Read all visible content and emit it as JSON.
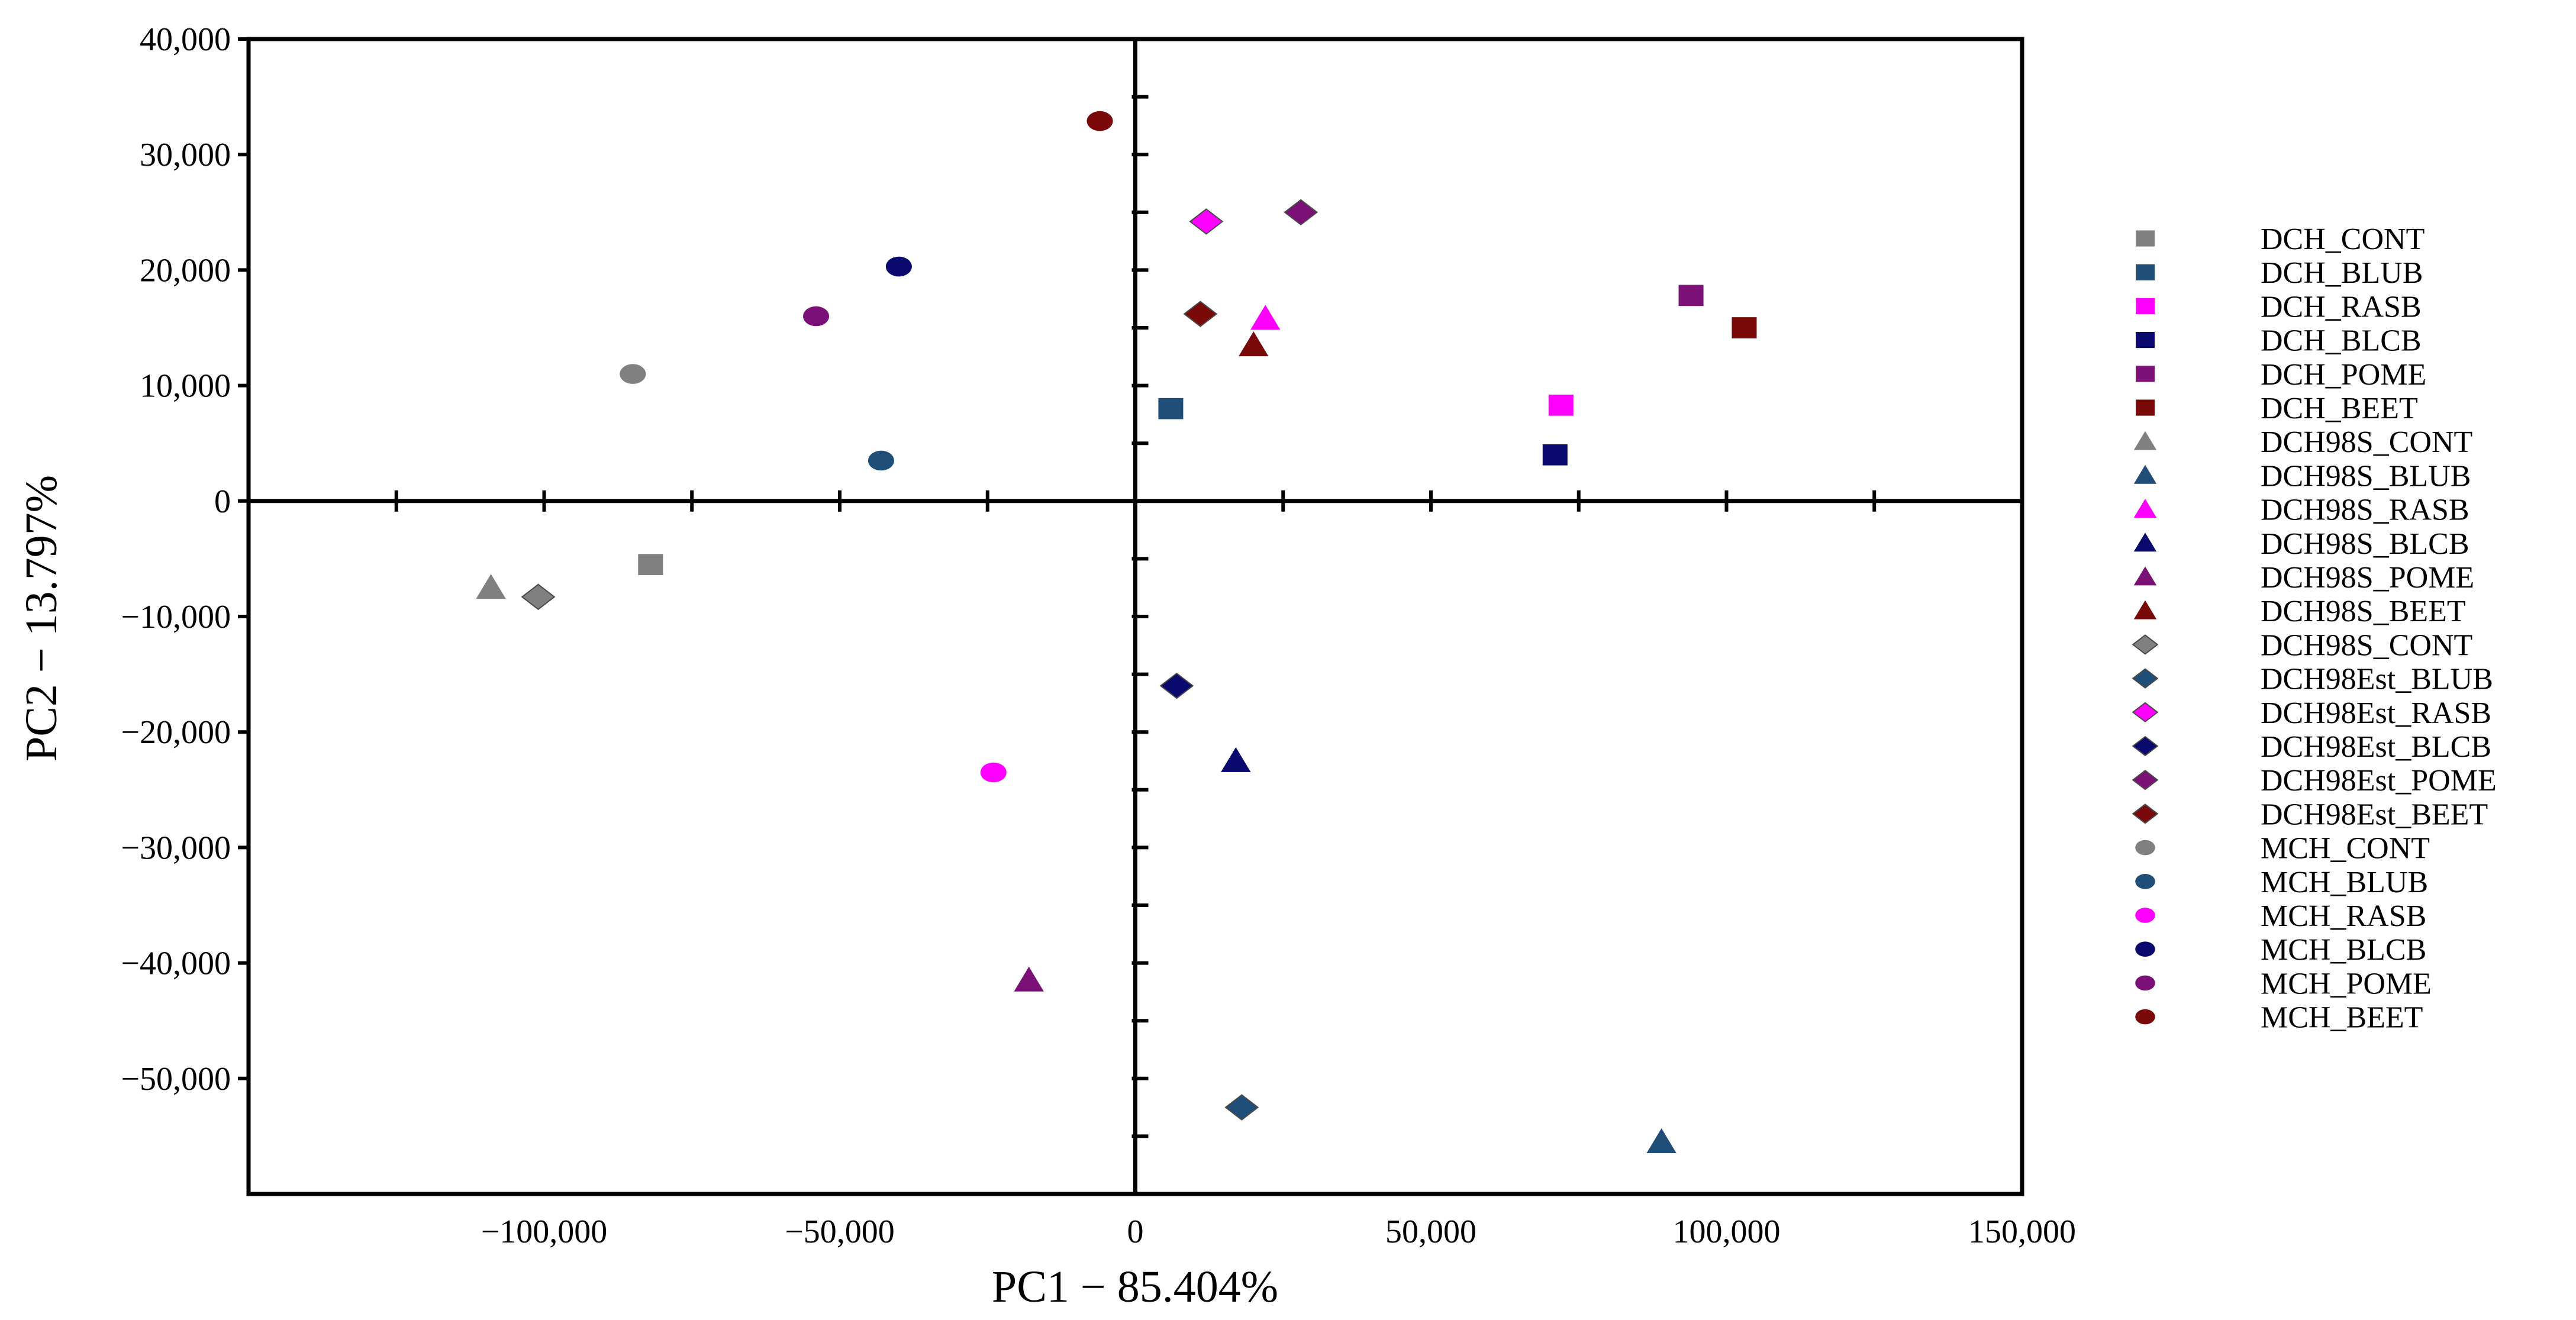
{
  "chart_data": {
    "type": "scatter",
    "xlabel": "PC1 − 85.404%",
    "ylabel": "PC2 − 13.797%",
    "xlim": [
      -150000,
      150000
    ],
    "ylim": [
      -60000,
      40000
    ],
    "x_tick_values": [
      -100000,
      -50000,
      0,
      50000,
      100000,
      150000
    ],
    "x_tick_labels": [
      "−100,000",
      "−50,000",
      "0",
      "50,000",
      "100,000",
      "150,000"
    ],
    "y_tick_values": [
      40000,
      30000,
      20000,
      10000,
      0,
      -10000,
      -20000,
      -30000,
      -40000,
      -50000
    ],
    "y_tick_labels": [
      "40,000",
      "30,000",
      "20,000",
      "10,000",
      "0",
      "−10,000",
      "−20,000",
      "−30,000",
      "−40,000",
      "−50,000"
    ],
    "grid": false,
    "legend_position": "right",
    "series": [
      {
        "name": "DCH_CONT",
        "marker": "square",
        "color": "#808080",
        "x": -82000,
        "y": -5500
      },
      {
        "name": "DCH_BLUB",
        "marker": "square",
        "color": "#1f4e79",
        "x": 6000,
        "y": 8000
      },
      {
        "name": "DCH_RASB",
        "marker": "square",
        "color": "#ff00ff",
        "x": 72000,
        "y": 8300
      },
      {
        "name": "DCH_BLCB",
        "marker": "square",
        "color": "#0a0a6e",
        "x": 71000,
        "y": 4000
      },
      {
        "name": "DCH_POME",
        "marker": "square",
        "color": "#7b1177",
        "x": 94000,
        "y": 17800
      },
      {
        "name": "DCH_BEET",
        "marker": "square",
        "color": "#7a0a0a",
        "x": 103000,
        "y": 15000
      },
      {
        "name": "DCH98S_CONT",
        "marker": "triangle",
        "color": "#808080",
        "x": -109000,
        "y": -7500
      },
      {
        "name": "DCH98S_BLUB",
        "marker": "triangle",
        "color": "#1f4e79",
        "x": 89000,
        "y": -55500
      },
      {
        "name": "DCH98S_RASB",
        "marker": "triangle",
        "color": "#ff00ff",
        "x": 22000,
        "y": 15800
      },
      {
        "name": "DCH98S_BLCB",
        "marker": "triangle",
        "color": "#0a0a6e",
        "x": 17000,
        "y": -22500
      },
      {
        "name": "DCH98S_POME",
        "marker": "triangle",
        "color": "#7b1177",
        "x": -18000,
        "y": -41500
      },
      {
        "name": "DCH98S_BEET",
        "marker": "triangle",
        "color": "#7a0a0a",
        "x": 20000,
        "y": 13500
      },
      {
        "name": "DCH98S_CONT",
        "marker": "diamond",
        "color": "#808080",
        "x": -101000,
        "y": -8300
      },
      {
        "name": "DCH98Est_BLUB",
        "marker": "diamond",
        "color": "#1f4e79",
        "x": 18000,
        "y": -52500
      },
      {
        "name": "DCH98Est_RASB",
        "marker": "diamond",
        "color": "#ff00ff",
        "x": 12000,
        "y": 24200
      },
      {
        "name": "DCH98Est_BLCB",
        "marker": "diamond",
        "color": "#0a0a6e",
        "x": 7000,
        "y": -16000
      },
      {
        "name": "DCH98Est_POME",
        "marker": "diamond",
        "color": "#7b1177",
        "x": 28000,
        "y": 25000
      },
      {
        "name": "DCH98Est_BEET",
        "marker": "diamond",
        "color": "#7a0a0a",
        "x": 11000,
        "y": 16200
      },
      {
        "name": "MCH_CONT",
        "marker": "ellipse",
        "color": "#808080",
        "x": -85000,
        "y": 11000
      },
      {
        "name": "MCH_BLUB",
        "marker": "ellipse",
        "color": "#1f4e79",
        "x": -43000,
        "y": 3500
      },
      {
        "name": "MCH_RASB",
        "marker": "ellipse",
        "color": "#ff00ff",
        "x": -24000,
        "y": -23500
      },
      {
        "name": "MCH_BLCB",
        "marker": "ellipse",
        "color": "#0a0a6e",
        "x": -40000,
        "y": 20300
      },
      {
        "name": "MCH_POME",
        "marker": "ellipse",
        "color": "#7b1177",
        "x": -54000,
        "y": 16000
      },
      {
        "name": "MCH_BEET",
        "marker": "ellipse",
        "color": "#7a0a0a",
        "x": -6000,
        "y": 32900
      }
    ]
  }
}
